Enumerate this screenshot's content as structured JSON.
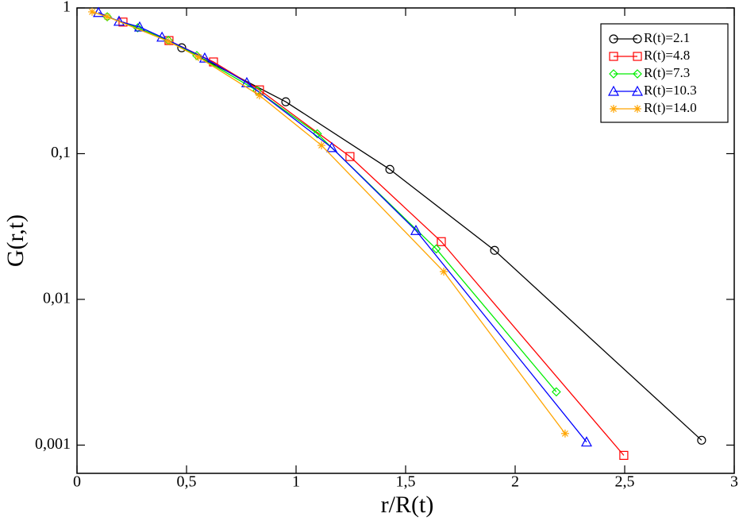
{
  "chart_data": {
    "type": "line",
    "log_y": true,
    "x_label": "r/R(t)",
    "y_label": "G(r,t)",
    "xlim": [
      0,
      3
    ],
    "ylim": [
      0.00064,
      1
    ],
    "xticks": [
      0,
      {
        "value": 0.5,
        "label": "0,5"
      },
      1,
      {
        "value": 1.5,
        "label": "1,5"
      },
      2,
      {
        "value": 2.5,
        "label": "2,5"
      },
      3
    ],
    "yticks": [
      {
        "value": 0.001,
        "label": "0,001"
      },
      {
        "value": 0.01,
        "label": "0,01"
      },
      {
        "value": 0.1,
        "label": "0,1"
      },
      1
    ],
    "legend": "upper right",
    "series": [
      {
        "name": "R(t)=2.1",
        "color": "#000000",
        "marker": "circle",
        "x": [
          0.478,
          0.953,
          1.428,
          1.906,
          2.851
        ],
        "values": [
          0.533,
          0.227,
          0.078,
          0.0217,
          0.00108
        ]
      },
      {
        "name": "R(t)=4.8",
        "color": "#ff0000",
        "marker": "square",
        "x": [
          0.21,
          0.42,
          0.623,
          0.833,
          1.246,
          1.663,
          2.496
        ],
        "values": [
          0.8,
          0.597,
          0.426,
          0.274,
          0.0955,
          0.0249,
          0.00085
        ]
      },
      {
        "name": "R(t)=7.3",
        "color": "#00ee00",
        "marker": "diamond",
        "x": [
          0.138,
          0.277,
          0.417,
          0.547,
          0.822,
          1.097,
          1.64,
          2.188
        ],
        "values": [
          0.87,
          0.73,
          0.6,
          0.471,
          0.271,
          0.137,
          0.0222,
          0.00232
        ]
      },
      {
        "name": "R(t)=10.3",
        "color": "#0000ff",
        "marker": "triangle",
        "x": [
          0.098,
          0.192,
          0.286,
          0.388,
          0.583,
          0.775,
          1.163,
          1.547,
          2.326
        ],
        "values": [
          0.93,
          0.81,
          0.74,
          0.63,
          0.453,
          0.307,
          0.11,
          0.0297,
          0.00105
        ]
      },
      {
        "name": "R(t)=14.0",
        "color": "#ffa500",
        "marker": "star",
        "x": [
          0.069,
          0.138,
          0.417,
          0.554,
          0.833,
          1.116,
          1.674,
          2.228
        ],
        "values": [
          0.94,
          0.87,
          0.59,
          0.46,
          0.251,
          0.114,
          0.0155,
          0.0012
        ]
      }
    ]
  }
}
